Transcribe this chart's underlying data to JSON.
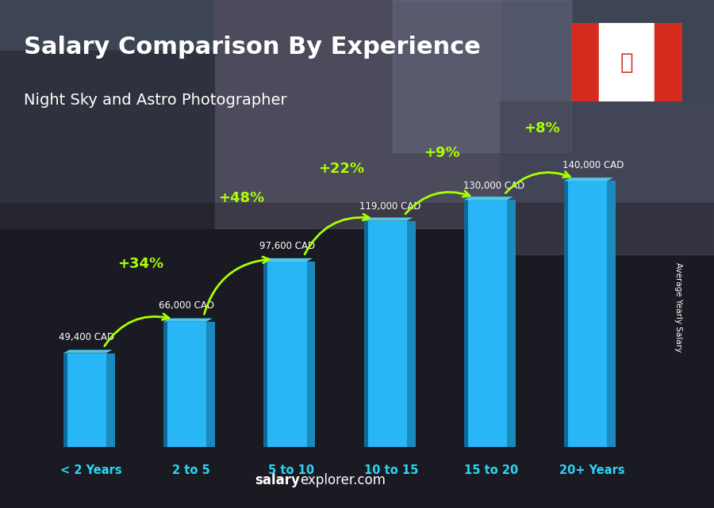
{
  "title": "Salary Comparison By Experience",
  "subtitle": "Night Sky and Astro Photographer",
  "categories": [
    "< 2 Years",
    "2 to 5",
    "5 to 10",
    "10 to 15",
    "15 to 20",
    "20+ Years"
  ],
  "values": [
    49400,
    66000,
    97600,
    119000,
    130000,
    140000
  ],
  "salary_labels": [
    "49,400 CAD",
    "66,000 CAD",
    "97,600 CAD",
    "119,000 CAD",
    "130,000 CAD",
    "140,000 CAD"
  ],
  "pct_changes": [
    null,
    "+34%",
    "+48%",
    "+22%",
    "+9%",
    "+8%"
  ],
  "bar_face_color": "#29b6f6",
  "bar_left_color": "#0d5c8a",
  "bar_top_color": "#5cd6f8",
  "bar_right_color": "#1a8fc0",
  "bg_color": "#3a3a4a",
  "title_color": "#ffffff",
  "subtitle_color": "#ffffff",
  "salary_label_color": "#ffffff",
  "pct_color": "#aaff00",
  "cat_label_color": "#29d6f6",
  "watermark_bold": "salary",
  "watermark_normal": "explorer.com",
  "ylabel_text": "Average Yearly Salary",
  "flag_left_color": "#d52b1e",
  "flag_center_color": "#ffffff",
  "flag_maple_color": "#d52b1e"
}
